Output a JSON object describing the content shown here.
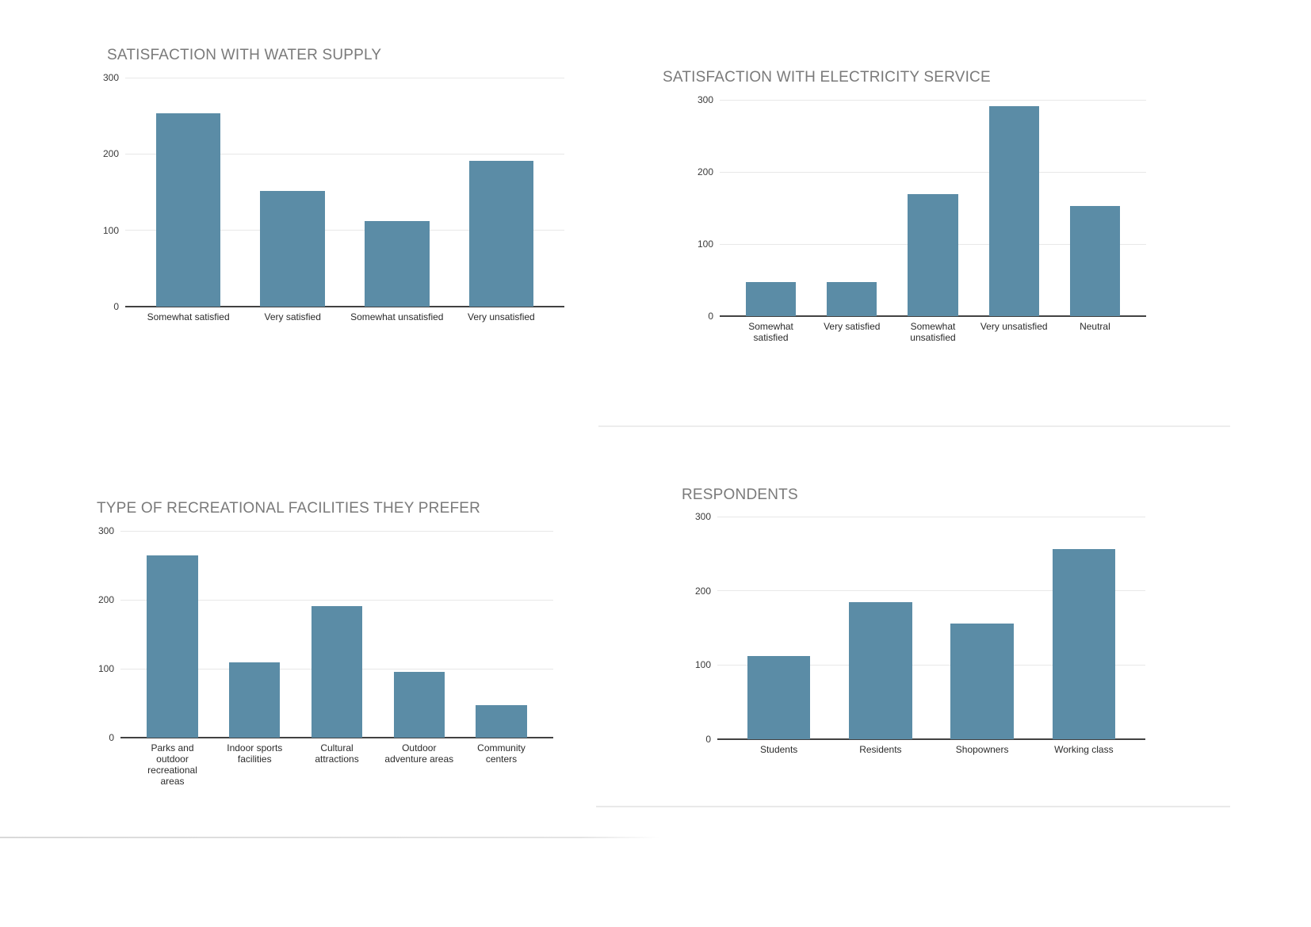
{
  "styles": {
    "bar_color": "#5b8ca6",
    "title_color": "#7a7a7a",
    "grid_color": "#e8e8e8",
    "axis_color": "#424242",
    "tick_color": "#3a3a3a",
    "label_color": "#2b2b2b"
  },
  "chart_data": [
    {
      "type": "bar",
      "title": "SATISFACTION WITH WATER SUPPLY",
      "categories": [
        "Somewhat satisfied",
        "Very satisfied",
        "Somewhat unsatisfied",
        "Very unsatisfied"
      ],
      "values": [
        253,
        152,
        112,
        191
      ],
      "xlabel": "",
      "ylabel": "",
      "ylim": [
        0,
        300
      ],
      "yticks": [
        0,
        100,
        200,
        300
      ],
      "grid": true,
      "legend": "none"
    },
    {
      "type": "bar",
      "title": "SATISFACTION WITH ELECTRICITY SERVICE",
      "categories": [
        "Somewhat\nsatisfied",
        "Very satisfied",
        "Somewhat\nunsatisfied",
        "Very unsatisfied",
        "Neutral"
      ],
      "values": [
        47,
        47,
        169,
        291,
        153
      ],
      "xlabel": "",
      "ylabel": "",
      "ylim": [
        0,
        300
      ],
      "yticks": [
        0,
        100,
        200,
        300
      ],
      "grid": true,
      "legend": "none"
    },
    {
      "type": "bar",
      "title": "TYPE OF RECREATIONAL FACILITIES THEY PREFER",
      "categories": [
        "Parks and\noutdoor\nrecreational\nareas",
        "Indoor sports\nfacilities",
        "Cultural\nattractions",
        "Outdoor\nadventure areas",
        "Community\ncenters"
      ],
      "values": [
        264,
        109,
        191,
        95,
        47
      ],
      "xlabel": "",
      "ylabel": "",
      "ylim": [
        0,
        300
      ],
      "yticks": [
        0,
        100,
        200,
        300
      ],
      "grid": true,
      "legend": "none"
    },
    {
      "type": "bar",
      "title": "RESPONDENTS",
      "categories": [
        "Students",
        "Residents",
        "Shopowners",
        "Working class"
      ],
      "values": [
        112,
        185,
        156,
        256
      ],
      "xlabel": "",
      "ylabel": "",
      "ylim": [
        0,
        300
      ],
      "yticks": [
        0,
        100,
        200,
        300
      ],
      "grid": true,
      "legend": "none"
    }
  ]
}
